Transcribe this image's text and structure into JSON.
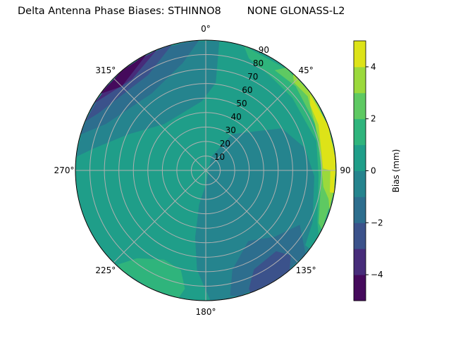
{
  "chart_data": {
    "type": "polar-contour",
    "title": "Delta Antenna Phase Biases: STHINNO8        NONE GLONASS-L2",
    "angular_axis": {
      "direction": "clockwise",
      "zero": "north",
      "tick_labels": [
        "0°",
        "45°",
        "90°",
        "135°",
        "180°",
        "225°",
        "270°",
        "315°"
      ],
      "tick_values": [
        0,
        45,
        90,
        135,
        180,
        225,
        270,
        315
      ]
    },
    "radial_axis": {
      "range": [
        0,
        90
      ],
      "tick_labels": [
        "10",
        "20",
        "30",
        "40",
        "50",
        "60",
        "70",
        "80",
        "90"
      ],
      "tick_values": [
        10,
        20,
        30,
        40,
        50,
        60,
        70,
        80,
        90
      ]
    },
    "grid": true,
    "colorbar": {
      "label": "Bias (mm)",
      "range": [
        -5,
        5
      ],
      "tick_labels": [
        "−4",
        "−2",
        "0",
        "2",
        "4"
      ],
      "tick_values": [
        -4,
        -2,
        0,
        2,
        4
      ],
      "position": "right"
    },
    "levels": [
      {
        "range": [
          -5,
          -4
        ],
        "color": "#450a5c"
      },
      {
        "range": [
          -4,
          -3
        ],
        "color": "#472c7a"
      },
      {
        "range": [
          -3,
          -2
        ],
        "color": "#3b528b"
      },
      {
        "range": [
          -2,
          -1
        ],
        "color": "#2d6e8e"
      },
      {
        "range": [
          -1,
          0
        ],
        "color": "#25848e"
      },
      {
        "range": [
          0,
          1
        ],
        "color": "#1f9e89"
      },
      {
        "range": [
          1,
          2
        ],
        "color": "#2fb47c"
      },
      {
        "range": [
          2,
          3
        ],
        "color": "#5ec962"
      },
      {
        "range": [
          3,
          4
        ],
        "color": "#9bd93c"
      },
      {
        "range": [
          4,
          5
        ],
        "color": "#dde318"
      }
    ],
    "background_level": [
      0,
      1
    ],
    "regions": [
      {
        "level": [
          -1,
          0
        ],
        "points": [
          [
            180,
            10
          ],
          [
            22,
            10
          ],
          [
            36,
            31
          ],
          [
            61,
            60
          ],
          [
            77,
            70
          ],
          [
            93,
            75
          ],
          [
            116,
            82
          ],
          [
            127,
            86
          ],
          [
            127,
            90
          ],
          [
            140,
            90
          ],
          [
            155,
            90
          ],
          [
            170,
            90
          ],
          [
            178,
            90
          ],
          [
            185,
            69
          ],
          [
            189,
            47
          ],
          [
            191,
            24
          ]
        ]
      },
      {
        "level": [
          -1,
          0
        ],
        "points": [
          [
            6,
            90
          ],
          [
            6.5,
            61
          ],
          [
            357,
            48
          ],
          [
            318,
            43
          ],
          [
            295,
            59
          ],
          [
            281,
            79
          ],
          [
            276,
            90
          ],
          [
            290,
            90
          ],
          [
            310,
            90
          ],
          [
            330,
            90
          ],
          [
            350,
            90
          ]
        ]
      },
      {
        "level": [
          -2,
          -1
        ],
        "points": [
          [
            357,
            90
          ],
          [
            348,
            76
          ],
          [
            325,
            65
          ],
          [
            295,
            76
          ],
          [
            286,
            90
          ],
          [
            300,
            90
          ],
          [
            320,
            90
          ],
          [
            340,
            90
          ]
        ]
      },
      {
        "level": [
          -3,
          -2
        ],
        "points": [
          [
            345,
            90
          ],
          [
            329,
            77
          ],
          [
            298,
            84
          ],
          [
            292,
            90
          ],
          [
            310,
            90
          ],
          [
            330,
            90
          ]
        ]
      },
      {
        "level": [
          -4,
          -3
        ],
        "points": [
          [
            338,
            90
          ],
          [
            321,
            81
          ],
          [
            301,
            90
          ],
          [
            320,
            90
          ]
        ]
      },
      {
        "level": [
          -5,
          -4
        ],
        "points": [
          [
            333,
            90
          ],
          [
            315,
            82
          ],
          [
            306,
            90
          ],
          [
            320,
            90
          ]
        ]
      },
      {
        "level": [
          1,
          2
        ],
        "points": [
          [
            17,
            90
          ],
          [
            21,
            83
          ],
          [
            34,
            79
          ],
          [
            50,
            78
          ],
          [
            75,
            79
          ],
          [
            93,
            78
          ],
          [
            115,
            85
          ],
          [
            120,
            90
          ],
          [
            100,
            90
          ],
          [
            80,
            90
          ],
          [
            60,
            90
          ],
          [
            40,
            90
          ]
        ]
      },
      {
        "level": [
          2,
          3
        ],
        "points": [
          [
            38,
            90
          ],
          [
            34.5,
            84
          ],
          [
            47,
            85
          ],
          [
            67,
            82
          ],
          [
            90,
            80
          ],
          [
            115,
            86
          ],
          [
            117,
            90
          ],
          [
            100,
            90
          ],
          [
            80,
            90
          ],
          [
            60,
            90
          ]
        ]
      },
      {
        "level": [
          3,
          4
        ],
        "points": [
          [
            42,
            90
          ],
          [
            45,
            86
          ],
          [
            54,
            87
          ],
          [
            75,
            81
          ],
          [
            98,
            82
          ],
          [
            103,
            87
          ],
          [
            108,
            90
          ],
          [
            90,
            90
          ],
          [
            70,
            90
          ],
          [
            55,
            90
          ]
        ]
      },
      {
        "level": [
          4,
          5
        ],
        "points": [
          [
            50,
            90
          ],
          [
            54,
            89
          ],
          [
            58,
            85
          ],
          [
            68,
            84
          ],
          [
            89,
            81
          ],
          [
            90,
            86
          ],
          [
            100,
            87
          ],
          [
            100,
            90
          ],
          [
            85,
            90
          ],
          [
            70,
            90
          ]
        ]
      },
      {
        "level": [
          -2,
          -1
        ],
        "points": [
          [
            149,
            57
          ],
          [
            134,
            66
          ],
          [
            120,
            75
          ],
          [
            126,
            83
          ],
          [
            130,
            90
          ],
          [
            145,
            90
          ],
          [
            165,
            90
          ],
          [
            169,
            88
          ],
          [
            165,
            71
          ]
        ]
      },
      {
        "level": [
          -3,
          -2
        ],
        "points": [
          [
            139,
            74
          ],
          [
            135,
            83
          ],
          [
            140,
            90
          ],
          [
            150,
            90
          ],
          [
            160,
            90
          ],
          [
            160,
            87
          ],
          [
            154,
            76
          ]
        ]
      },
      {
        "level": [
          1,
          2
        ],
        "points": [
          [
            218,
            77
          ],
          [
            205,
            68
          ],
          [
            194,
            71
          ],
          [
            190,
            83
          ],
          [
            192,
            90
          ],
          [
            205,
            90
          ],
          [
            220,
            90
          ],
          [
            223,
            89
          ]
        ]
      }
    ]
  }
}
